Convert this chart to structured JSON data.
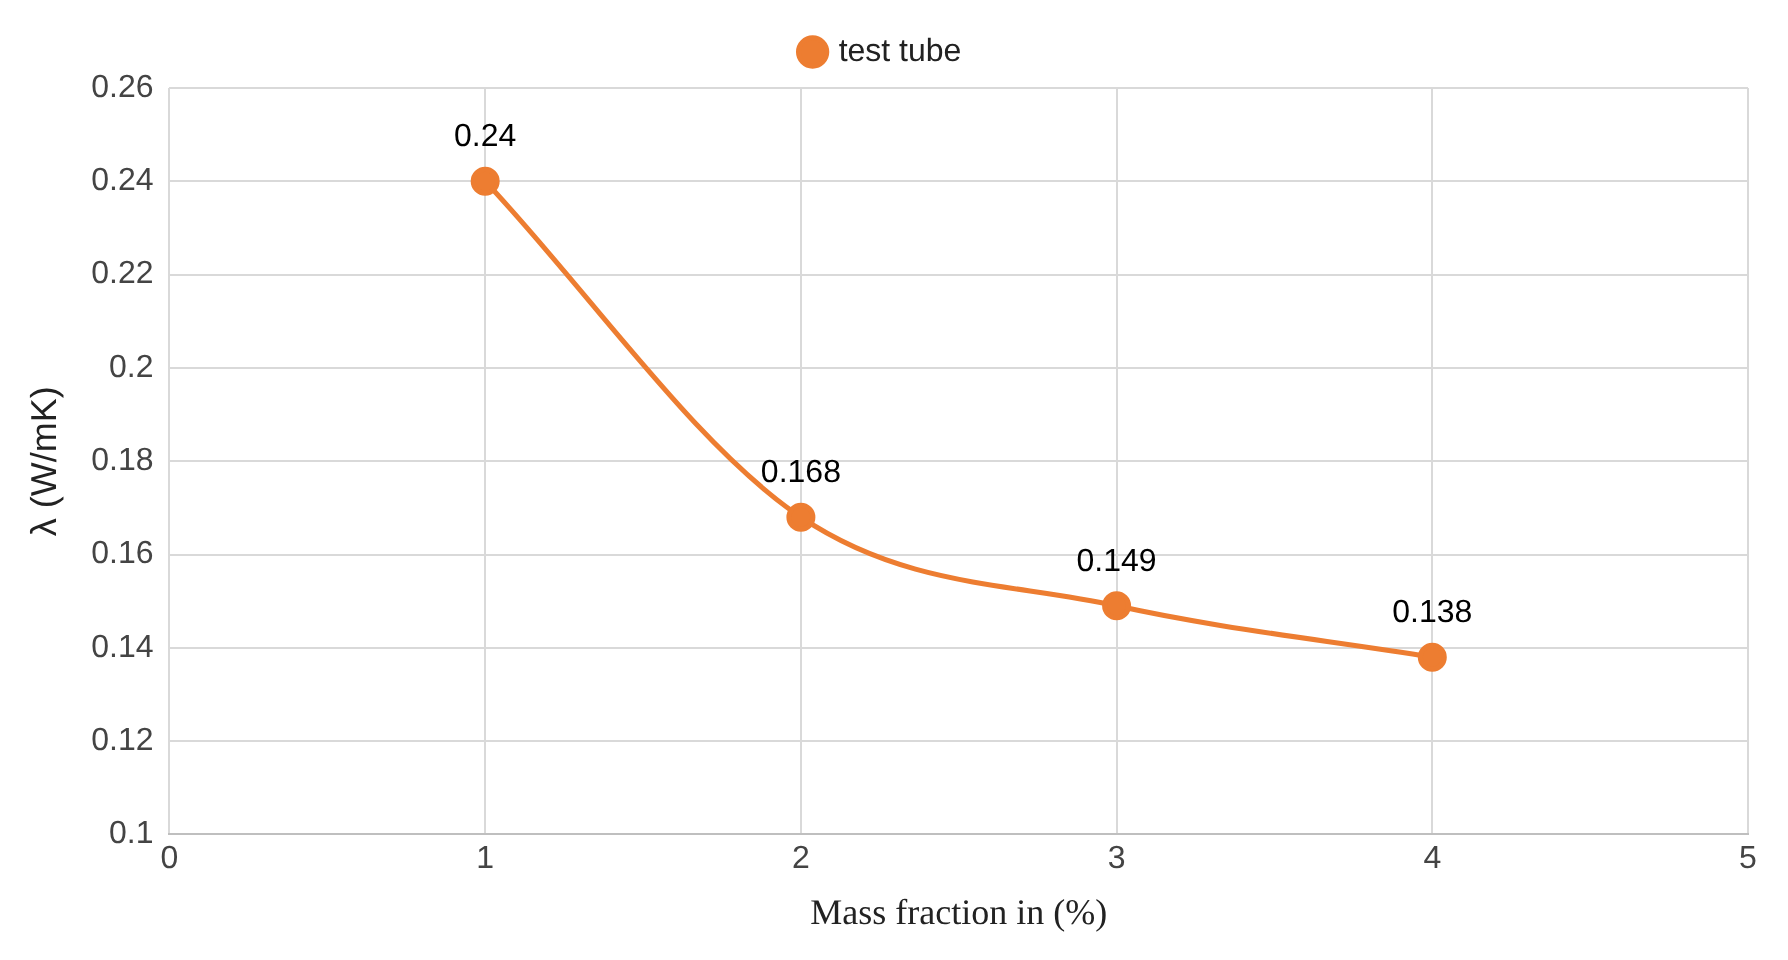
{
  "chart_data": {
    "type": "line",
    "xlabel": "Mass fraction in (%)",
    "ylabel": "λ (W/mK)",
    "x": [
      1,
      2,
      3,
      4
    ],
    "series": [
      {
        "name": "test tube",
        "color": "#ed7d31",
        "values": [
          0.24,
          0.168,
          0.149,
          0.138
        ]
      }
    ],
    "xlim": [
      0,
      5
    ],
    "xticks": [
      0,
      1,
      2,
      3,
      4,
      5
    ],
    "ylim": [
      0.1,
      0.26
    ],
    "yticks": [
      0.1,
      0.12,
      0.14,
      0.16,
      0.18,
      0.2,
      0.22,
      0.24,
      0.26
    ],
    "grid": true,
    "legend": "top",
    "marker": "circle",
    "line_style": "solid",
    "data_labels": true
  }
}
